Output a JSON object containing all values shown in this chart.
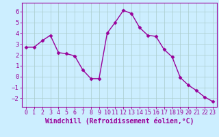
{
  "x": [
    0,
    1,
    2,
    3,
    4,
    5,
    6,
    7,
    8,
    9,
    10,
    11,
    12,
    13,
    14,
    15,
    16,
    17,
    18,
    19,
    20,
    21,
    22,
    23
  ],
  "y": [
    2.7,
    2.7,
    3.3,
    3.8,
    2.2,
    2.1,
    1.9,
    0.6,
    -0.2,
    -0.2,
    4.0,
    5.0,
    6.1,
    5.8,
    4.5,
    3.8,
    3.7,
    2.5,
    1.8,
    -0.1,
    -0.8,
    -1.3,
    -1.9,
    -2.3
  ],
  "line_color": "#990099",
  "marker": "D",
  "markersize": 2.5,
  "linewidth": 1.0,
  "bg_color": "#cceeff",
  "grid_color": "#aacccc",
  "xlabel": "Windchill (Refroidissement éolien,°C)",
  "xlabel_color": "#990099",
  "xlabel_fontsize": 7,
  "xtick_fontsize": 6,
  "ytick_fontsize": 6.5,
  "ylim": [
    -2.8,
    6.8
  ],
  "xlim": [
    -0.5,
    23.5
  ],
  "yticks": [
    -2,
    -1,
    0,
    1,
    2,
    3,
    4,
    5,
    6
  ],
  "xticks": [
    0,
    1,
    2,
    3,
    4,
    5,
    6,
    7,
    8,
    9,
    10,
    11,
    12,
    13,
    14,
    15,
    16,
    17,
    18,
    19,
    20,
    21,
    22,
    23
  ],
  "tick_color": "#990099",
  "spine_color": "#990099"
}
